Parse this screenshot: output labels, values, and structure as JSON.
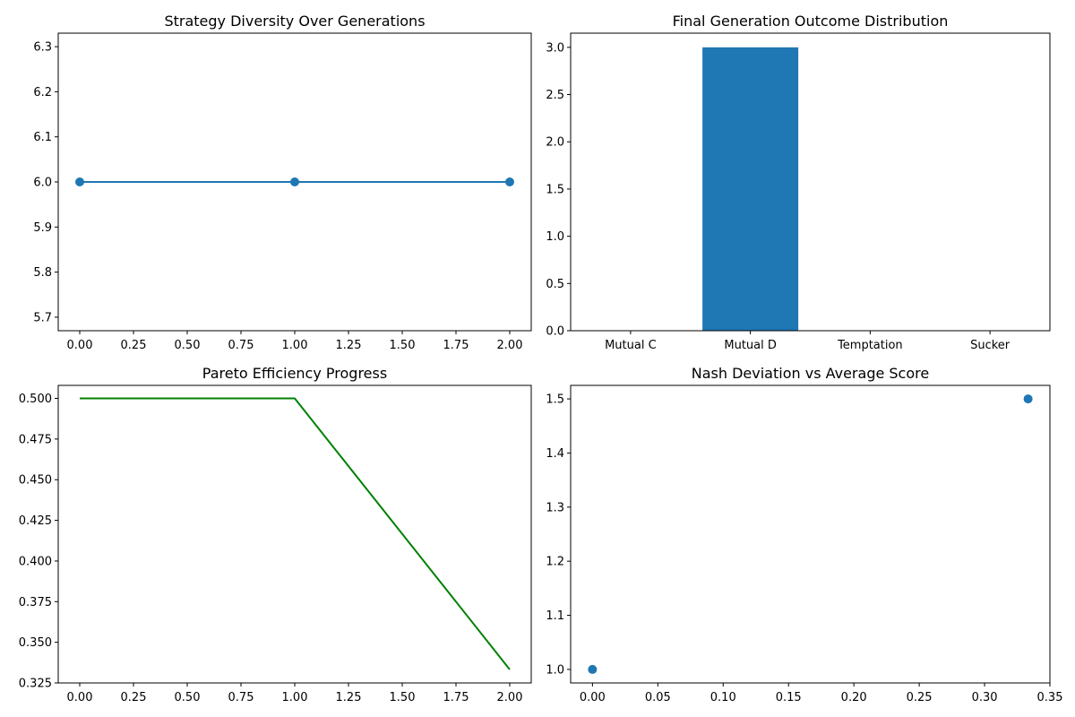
{
  "chart_data": [
    {
      "type": "line",
      "title": "Strategy Diversity Over Generations",
      "xlabel": "",
      "ylabel": "",
      "x": [
        0,
        1,
        2
      ],
      "series": [
        {
          "values": [
            6.0,
            6.0,
            6.0
          ]
        }
      ],
      "markers": true,
      "color": "#1f77b4",
      "xlim": [
        -0.1,
        2.1
      ],
      "ylim": [
        5.67,
        6.33
      ],
      "xticks": [
        0.0,
        0.25,
        0.5,
        0.75,
        1.0,
        1.25,
        1.5,
        1.75,
        2.0
      ],
      "xtick_labels": [
        "0.00",
        "0.25",
        "0.50",
        "0.75",
        "1.00",
        "1.25",
        "1.50",
        "1.75",
        "2.00"
      ],
      "yticks": [
        5.7,
        5.8,
        5.9,
        6.0,
        6.1,
        6.2,
        6.3
      ],
      "ytick_labels": [
        "5.7",
        "5.8",
        "5.9",
        "6.0",
        "6.1",
        "6.2",
        "6.3"
      ],
      "grid": false
    },
    {
      "type": "bar",
      "title": "Final Generation Outcome Distribution",
      "xlabel": "",
      "ylabel": "",
      "categories": [
        "Mutual C",
        "Mutual D",
        "Temptation",
        "Sucker"
      ],
      "values": [
        0,
        3,
        0,
        0
      ],
      "color": "#1f77b4",
      "ylim": [
        0,
        3.15
      ],
      "yticks": [
        0.0,
        0.5,
        1.0,
        1.5,
        2.0,
        2.5,
        3.0
      ],
      "ytick_labels": [
        "0.0",
        "0.5",
        "1.0",
        "1.5",
        "2.0",
        "2.5",
        "3.0"
      ],
      "grid": false
    },
    {
      "type": "line",
      "title": "Pareto Efficiency Progress",
      "xlabel": "",
      "ylabel": "",
      "x": [
        0,
        1,
        2
      ],
      "series": [
        {
          "values": [
            0.5,
            0.5,
            0.3333
          ]
        }
      ],
      "markers": false,
      "color": "#008000",
      "xlim": [
        -0.1,
        2.1
      ],
      "ylim": [
        0.325,
        0.508
      ],
      "xticks": [
        0.0,
        0.25,
        0.5,
        0.75,
        1.0,
        1.25,
        1.5,
        1.75,
        2.0
      ],
      "xtick_labels": [
        "0.00",
        "0.25",
        "0.50",
        "0.75",
        "1.00",
        "1.25",
        "1.50",
        "1.75",
        "2.00"
      ],
      "yticks": [
        0.325,
        0.35,
        0.375,
        0.4,
        0.425,
        0.45,
        0.475,
        0.5
      ],
      "ytick_labels": [
        "0.325",
        "0.350",
        "0.375",
        "0.400",
        "0.425",
        "0.450",
        "0.475",
        "0.500"
      ],
      "grid": false
    },
    {
      "type": "scatter",
      "title": "Nash Deviation vs Average Score",
      "xlabel": "",
      "ylabel": "",
      "points": [
        {
          "x": 0.0,
          "y": 1.0
        },
        {
          "x": 0.3333,
          "y": 1.5
        }
      ],
      "color": "#1f77b4",
      "xlim": [
        -0.0167,
        0.35
      ],
      "ylim": [
        0.975,
        1.525
      ],
      "xticks": [
        0.0,
        0.05,
        0.1,
        0.15,
        0.2,
        0.25,
        0.3,
        0.35
      ],
      "xtick_labels": [
        "0.00",
        "0.05",
        "0.10",
        "0.15",
        "0.20",
        "0.25",
        "0.30",
        "0.35"
      ],
      "yticks": [
        1.0,
        1.1,
        1.2,
        1.3,
        1.4,
        1.5
      ],
      "ytick_labels": [
        "1.0",
        "1.1",
        "1.2",
        "1.3",
        "1.4",
        "1.5"
      ],
      "grid": false
    }
  ]
}
